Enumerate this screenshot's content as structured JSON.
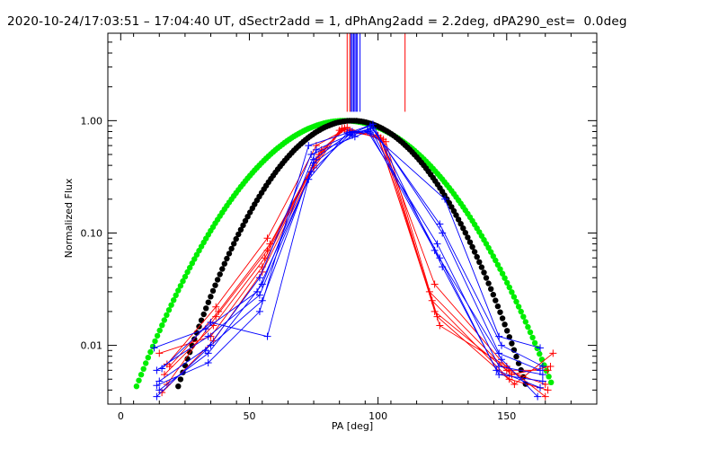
{
  "chart_data": {
    "type": "line",
    "title": "2020-10-24/17:03:51 – 17:04:40 UT, dSectr2add = 1, dPhAng2add = 2.2deg, dPA290_est=  0.0deg",
    "xlabel": "PA [deg]",
    "ylabel": "Normalized Flux",
    "xlim": [
      -5,
      185
    ],
    "ylim": [
      0.003,
      6.0
    ],
    "yscale": "log",
    "x_ticks": [
      {
        "value": 0,
        "label": "0"
      },
      {
        "value": 50,
        "label": "50"
      },
      {
        "value": 100,
        "label": "100"
      },
      {
        "value": 150,
        "label": "150"
      }
    ],
    "y_ticks": [
      {
        "value": 0.01,
        "label": "0.01"
      },
      {
        "value": 0.1,
        "label": "0.10"
      },
      {
        "value": 1.0,
        "label": "1.00"
      }
    ],
    "vertical_markers": [
      {
        "x": 88.0,
        "ymin": 1.2,
        "ymax": 6.0,
        "color": "#ff0000"
      },
      {
        "x": 89.0,
        "ymin": 1.2,
        "ymax": 6.0,
        "color": "#ff0000"
      },
      {
        "x": 89.5,
        "ymin": 1.2,
        "ymax": 6.0,
        "color": "#0000ff"
      },
      {
        "x": 90.0,
        "ymin": 1.2,
        "ymax": 6.0,
        "color": "#0000ff"
      },
      {
        "x": 90.5,
        "ymin": 1.2,
        "ymax": 6.0,
        "color": "#0000ff"
      },
      {
        "x": 91.0,
        "ymin": 1.2,
        "ymax": 6.0,
        "color": "#0000ff"
      },
      {
        "x": 91.5,
        "ymin": 1.2,
        "ymax": 6.0,
        "color": "#0000ff"
      },
      {
        "x": 92.0,
        "ymin": 1.2,
        "ymax": 6.0,
        "color": "#0000ff"
      },
      {
        "x": 93.0,
        "ymin": 1.2,
        "ymax": 6.0,
        "color": "#0000ff"
      },
      {
        "x": 110.5,
        "ymin": 1.2,
        "ymax": 6.0,
        "color": "#ff0000"
      }
    ],
    "model_curves": [
      {
        "name": "green-fit",
        "color": "#00ee00",
        "center": 87,
        "sigma": 24.5,
        "marker": "dot"
      },
      {
        "name": "black-fit",
        "color": "#000000",
        "center": 90,
        "sigma": 20.5,
        "marker": "dot"
      }
    ],
    "series": [
      {
        "name": "red-1",
        "color": "#ff0000",
        "x": [
          15,
          35,
          55,
          75,
          85,
          100,
          120,
          150,
          165
        ],
        "y": [
          0.0085,
          0.012,
          0.05,
          0.4,
          0.82,
          0.72,
          0.03,
          0.006,
          0.0045
        ]
      },
      {
        "name": "red-2",
        "color": "#ff0000",
        "x": [
          17,
          36,
          56,
          76,
          86,
          101,
          121,
          151,
          166
        ],
        "y": [
          0.0055,
          0.015,
          0.06,
          0.45,
          0.85,
          0.7,
          0.025,
          0.005,
          0.004
        ]
      },
      {
        "name": "red-3",
        "color": "#ff0000",
        "x": [
          18,
          37,
          57,
          77,
          87,
          102,
          122,
          152,
          167
        ],
        "y": [
          0.0045,
          0.018,
          0.07,
          0.5,
          0.86,
          0.68,
          0.02,
          0.0055,
          0.0065
        ]
      },
      {
        "name": "red-4",
        "color": "#ff0000",
        "x": [
          19,
          38,
          58,
          78,
          88,
          103,
          123,
          153,
          168
        ],
        "y": [
          0.0065,
          0.02,
          0.08,
          0.55,
          0.87,
          0.65,
          0.018,
          0.0045,
          0.0085
        ]
      },
      {
        "name": "red-5",
        "color": "#ff0000",
        "x": [
          16,
          36,
          55,
          75,
          86,
          100,
          124,
          150,
          165
        ],
        "y": [
          0.0038,
          0.011,
          0.045,
          0.38,
          0.84,
          0.74,
          0.015,
          0.0065,
          0.0035
        ]
      },
      {
        "name": "red-6",
        "color": "#ff0000",
        "x": [
          18,
          37,
          57,
          76,
          87,
          101,
          122,
          151,
          166
        ],
        "y": [
          0.0068,
          0.022,
          0.09,
          0.6,
          0.83,
          0.7,
          0.035,
          0.006,
          0.006
        ]
      },
      {
        "name": "blue-1",
        "color": "#0000ff",
        "x": [
          13,
          33,
          53,
          73,
          88,
          96,
          126,
          147,
          163
        ],
        "y": [
          0.0095,
          0.014,
          0.03,
          0.3,
          0.78,
          0.82,
          0.2,
          0.012,
          0.0095
        ]
      },
      {
        "name": "blue-2",
        "color": "#0000ff",
        "x": [
          14,
          34,
          54,
          74,
          89,
          97,
          124,
          148,
          164
        ],
        "y": [
          0.006,
          0.012,
          0.028,
          0.35,
          0.76,
          0.9,
          0.12,
          0.01,
          0.0065
        ]
      },
      {
        "name": "blue-3",
        "color": "#0000ff",
        "x": [
          15,
          35,
          55,
          75,
          90,
          98,
          125,
          147,
          163
        ],
        "y": [
          0.0048,
          0.01,
          0.025,
          0.42,
          0.74,
          0.86,
          0.1,
          0.0085,
          0.006
        ]
      },
      {
        "name": "blue-4",
        "color": "#0000ff",
        "x": [
          14,
          33,
          54,
          74,
          91,
          96,
          123,
          147,
          164
        ],
        "y": [
          0.0035,
          0.009,
          0.04,
          0.5,
          0.72,
          0.8,
          0.08,
          0.0065,
          0.0055
        ]
      },
      {
        "name": "blue-5",
        "color": "#0000ff",
        "x": [
          15,
          34,
          55,
          76,
          89,
          97,
          124,
          146,
          163
        ],
        "y": [
          0.004,
          0.0085,
          0.035,
          0.55,
          0.75,
          0.85,
          0.06,
          0.006,
          0.0042
        ]
      },
      {
        "name": "blue-6",
        "color": "#0000ff",
        "x": [
          16,
          35,
          57,
          75,
          90,
          98,
          125,
          147,
          164
        ],
        "y": [
          0.0062,
          0.016,
          0.012,
          0.45,
          0.8,
          0.93,
          0.05,
          0.0055,
          0.0048
        ]
      },
      {
        "name": "blue-7",
        "color": "#0000ff",
        "x": [
          14,
          34,
          54,
          73,
          89,
          97,
          122,
          148,
          162
        ],
        "y": [
          0.0044,
          0.007,
          0.02,
          0.6,
          0.79,
          0.78,
          0.07,
          0.0075,
          0.0035
        ]
      }
    ]
  }
}
